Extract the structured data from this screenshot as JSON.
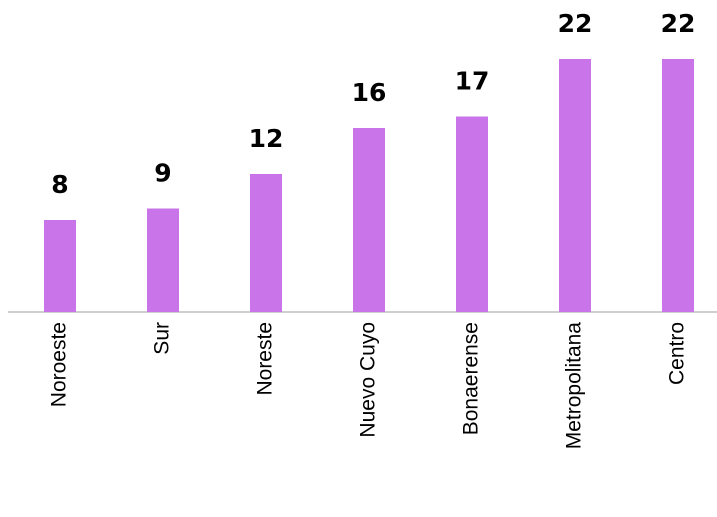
{
  "chart_data": {
    "type": "bar",
    "categories": [
      "Noroeste",
      "Sur",
      "Noreste",
      "Nuevo Cuyo",
      "Bonaerense",
      "Metropolitana",
      "Centro"
    ],
    "values": [
      8,
      9,
      12,
      16,
      17,
      22,
      22
    ],
    "color": "#c974e8",
    "ylim": [
      0,
      23
    ]
  }
}
